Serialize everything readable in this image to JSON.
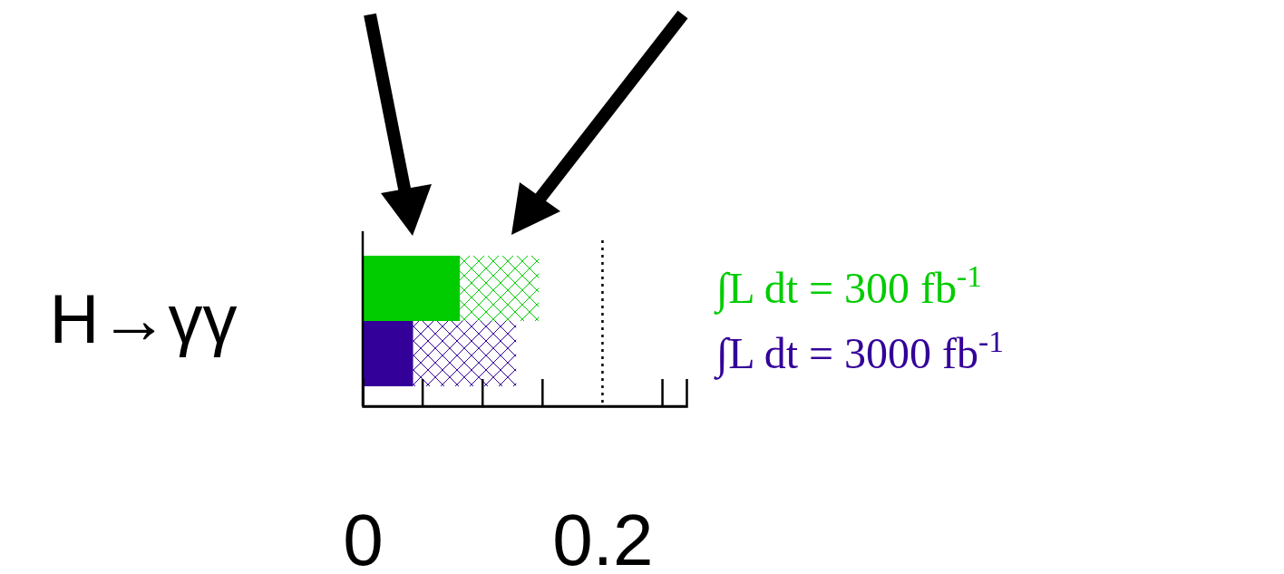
{
  "chart_data": {
    "type": "bar",
    "orientation": "horizontal",
    "stacked": true,
    "ylabel": "H→γγ",
    "categories": [
      "∫L dt = 300 fb$^{-1}$",
      "∫L dt = 3000 fb$^{-1}$"
    ],
    "series": [
      {
        "colors": [
          "#00cc00",
          "#330099"
        ],
        "values": [
          0.081,
          0.042
        ]
      },
      {
        "colors": [
          "#00cc00",
          "#330099"
        ],
        "values": [
          0.066,
          0.086
        ]
      }
    ],
    "xlim": [
      0,
      0.27
    ],
    "xticks": [
      0,
      0.2
    ],
    "ref_lines": [
      {
        "axis": "x",
        "value": 0.2,
        "line_style": "dotted",
        "color": "#000000"
      }
    ]
  }
}
